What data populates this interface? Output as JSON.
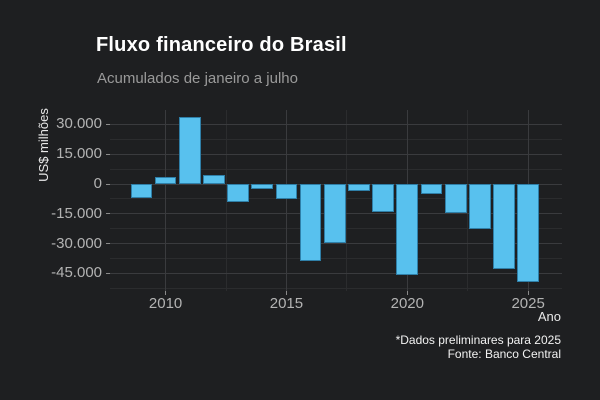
{
  "chart_data": {
    "type": "bar",
    "title": "Fluxo financeiro do Brasil",
    "subtitle": "Acumulados de janeiro a julho",
    "xlabel": "Ano",
    "ylabel": "US$ milhões",
    "caption": [
      "*Dados preliminares para 2025",
      "Fonte: Banco Central"
    ],
    "categories": [
      2009,
      2010,
      2011,
      2012,
      2013,
      2014,
      2015,
      2016,
      2017,
      2018,
      2019,
      2020,
      2021,
      2022,
      2023,
      2024,
      2025
    ],
    "values": [
      -7000,
      3500,
      33500,
      4500,
      -9000,
      -2500,
      -7500,
      -39000,
      -29500,
      -3500,
      -14000,
      -46000,
      -5000,
      -14500,
      -22500,
      -43000,
      -49500
    ],
    "yticks": [
      30000,
      15000,
      0,
      -15000,
      -30000,
      -45000
    ],
    "ytick_labels": [
      "30.000",
      "15.000",
      "0",
      "-15.000",
      "-30.000",
      "-45.000"
    ],
    "xticks": [
      2010,
      2015,
      2020,
      2025
    ],
    "xtick_labels": [
      "2010",
      "2015",
      "2020",
      "2025"
    ],
    "ylim": [
      -53850,
      37250
    ],
    "xlim": [
      2007.7,
      2026.4
    ],
    "grid": "major-and-minor",
    "legend": false,
    "bar_color": "#58C1EE",
    "bar_border_color": "#2F7FA8",
    "background_color": "#1E1F21",
    "grid_major_color": "#3A3B3E",
    "grid_minor_color": "#2B2C2E",
    "text_color": "#b3b3b3",
    "title_color": "#ffffff",
    "subtitle_color": "#9a9a9a"
  }
}
